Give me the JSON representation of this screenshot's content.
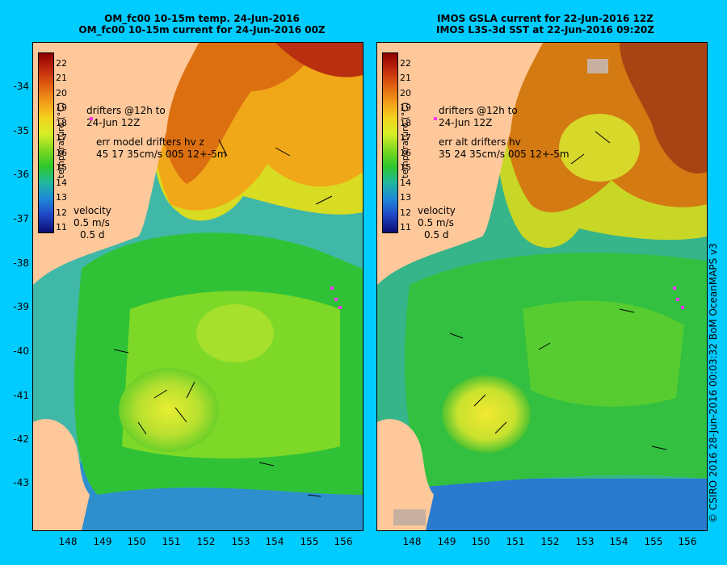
{
  "left_panel": {
    "title_line1": "OM_fc00 10-15m temp. 24-Jun-2016",
    "title_line2": "OM_fc00 10-15m current for 24-Jun-2016 00Z",
    "drifters_label": "drifters @12h to",
    "drifters_date": "24-Jun 12Z",
    "err_label": "err model drifters hv z",
    "err_values": "45 17 35cm/s 005 12+-5m"
  },
  "right_panel": {
    "title_line1": "IMOS GSLA current for 22-Jun-2016 12Z",
    "title_line2": "IMOS L3S-3d SST at 22-Jun-2016 09:20Z",
    "drifters_label": "drifters @12h to",
    "drifters_date": "24-Jun 12Z",
    "err_label": "err alt drifters hv",
    "err_values": "35 24 35cm/s 005 12+-5m"
  },
  "colorbar": {
    "unit_label": "temperature (°C)",
    "ticks": [
      "22",
      "21",
      "20",
      "19",
      "18",
      "17",
      "16",
      "15",
      "14",
      "13",
      "12",
      "11"
    ]
  },
  "velocity_legend": {
    "label": "velocity",
    "speed": "0.5 m/s",
    "duration": "0.5 d"
  },
  "y_axis_labels": [
    "-34",
    "-35",
    "-36",
    "-37",
    "-38",
    "-39",
    "-40",
    "-41",
    "-42",
    "-43"
  ],
  "x_axis_labels": [
    "148",
    "149",
    "150",
    "151",
    "152",
    "153",
    "154",
    "155",
    "156"
  ],
  "credit": "© CSIRO 2016  28-Jun-2016 00:03:32 BoM OceanMAPS v3",
  "colors": {
    "background": "#00ccff",
    "land": "#ffc89a",
    "drifter": "#ff33ff"
  }
}
